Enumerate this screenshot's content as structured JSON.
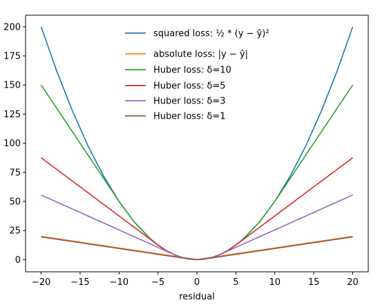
{
  "chart_data": {
    "type": "line",
    "title": "",
    "xlabel": "residual",
    "ylabel": "",
    "xlim": [
      -22,
      22
    ],
    "ylim": [
      -10.5,
      210
    ],
    "xticks": [
      -20,
      -15,
      -10,
      -5,
      0,
      5,
      10,
      15,
      20
    ],
    "yticks": [
      0,
      25,
      50,
      75,
      100,
      125,
      150,
      175,
      200
    ],
    "grid": false,
    "legend_position": "top-center",
    "x": [
      -20,
      -18,
      -16,
      -14,
      -12,
      -10,
      -8,
      -6,
      -5,
      -4,
      -3,
      -2,
      -1,
      0,
      1,
      2,
      3,
      4,
      5,
      6,
      8,
      10,
      12,
      14,
      16,
      18,
      20
    ],
    "series": [
      {
        "name": "squared loss: ½ * (y − ŷ)²",
        "color": "#1f77b4",
        "values": [
          200,
          162,
          128,
          98,
          72,
          50,
          32,
          18,
          12.5,
          8,
          4.5,
          2,
          0.5,
          0,
          0.5,
          2,
          4.5,
          8,
          12.5,
          18,
          32,
          50,
          72,
          98,
          128,
          162,
          200
        ]
      },
      {
        "name": "absolute loss: |y − ŷ|",
        "color": "#ff7f0e",
        "values": [
          20,
          18,
          16,
          14,
          12,
          10,
          8,
          6,
          5,
          4,
          3,
          2,
          1,
          0,
          1,
          2,
          3,
          4,
          5,
          6,
          8,
          10,
          12,
          14,
          16,
          18,
          20
        ]
      },
      {
        "name": "Huber loss: δ=10",
        "color": "#2ca02c",
        "values": [
          150,
          130,
          110,
          90,
          70,
          50,
          32,
          18,
          12.5,
          8,
          4.5,
          2,
          0.5,
          0,
          0.5,
          2,
          4.5,
          8,
          12.5,
          18,
          32,
          50,
          70,
          90,
          110,
          130,
          150
        ]
      },
      {
        "name": "Huber loss: δ=5",
        "color": "#d62728",
        "values": [
          87.5,
          77.5,
          67.5,
          57.5,
          47.5,
          37.5,
          27.5,
          17.5,
          12.5,
          8,
          4.5,
          2,
          0.5,
          0,
          0.5,
          2,
          4.5,
          8,
          12.5,
          17.5,
          27.5,
          37.5,
          47.5,
          57.5,
          67.5,
          77.5,
          87.5
        ]
      },
      {
        "name": "Huber loss: δ=3",
        "color": "#9467bd",
        "values": [
          55.5,
          49.5,
          43.5,
          37.5,
          31.5,
          25.5,
          19.5,
          13.5,
          10.5,
          7.5,
          4.5,
          2,
          0.5,
          0,
          0.5,
          2,
          4.5,
          7.5,
          10.5,
          13.5,
          19.5,
          25.5,
          31.5,
          37.5,
          43.5,
          49.5,
          55.5
        ]
      },
      {
        "name": "Huber loss: δ=1",
        "color": "#8c564b",
        "values": [
          19.5,
          17.5,
          15.5,
          13.5,
          11.5,
          9.5,
          7.5,
          5.5,
          4.5,
          3.5,
          2.5,
          1.5,
          0.5,
          0,
          0.5,
          1.5,
          2.5,
          3.5,
          4.5,
          5.5,
          7.5,
          9.5,
          11.5,
          13.5,
          15.5,
          17.5,
          19.5
        ]
      }
    ]
  }
}
